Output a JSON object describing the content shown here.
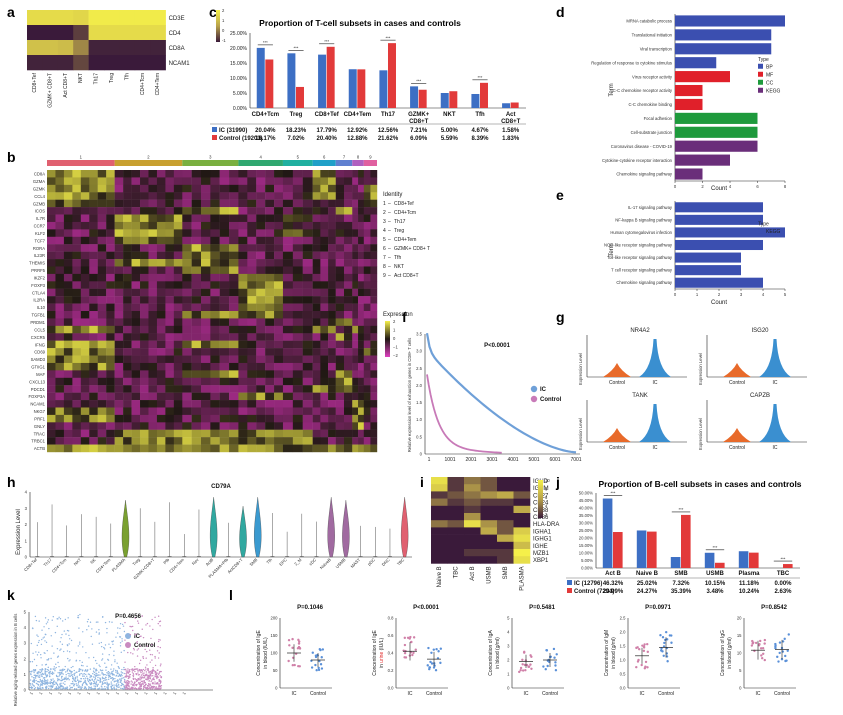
{
  "panels": {
    "a": "a",
    "b": "b",
    "c": "c",
    "d": "d",
    "e": "e",
    "f": "f",
    "g": "g",
    "h": "h",
    "i": "i",
    "j": "j",
    "k": "k",
    "l": "l"
  },
  "heatmap_a": {
    "rows": [
      "CD3E",
      "CD4",
      "CD8A",
      "NCAM1"
    ],
    "cols": [
      "CD8+Tef",
      "GZMK+ CD8+T",
      "Act CD8+T",
      "NKT",
      "Th17",
      "Treg",
      "Tfh",
      "CD4+Tcm",
      "CD4+Tem"
    ],
    "legend_ticks": [
      "2",
      "1",
      "0",
      "-1"
    ],
    "values": [
      [
        1.6,
        1.6,
        1.6,
        1.5,
        1.9,
        1.9,
        1.9,
        1.9,
        1.9
      ],
      [
        -1.0,
        -1.0,
        -1.0,
        -0.6,
        1.6,
        1.6,
        1.6,
        1.6,
        1.6
      ],
      [
        1.1,
        1.1,
        1.0,
        0.2,
        -0.9,
        -0.9,
        -0.9,
        -0.9,
        -0.9
      ],
      [
        -0.9,
        -0.9,
        -0.9,
        -0.5,
        -1.0,
        -1.0,
        -1.0,
        -1.0,
        -1.0
      ]
    ]
  },
  "chart_c": {
    "title": "Proportion of T-cell subsets in cases and controls",
    "categories": [
      "CD4+Tcm",
      "Treg",
      "CD8+Tef",
      "CD4+Tem",
      "Th17",
      "GZMK+ CD8+T",
      "NKT",
      "Tfh",
      "Act CD8+T"
    ],
    "cat_lines": [
      [
        "CD4+Tcm"
      ],
      [
        "Treg"
      ],
      [
        "CD8+Tef"
      ],
      [
        "CD4+Tem"
      ],
      [
        "Th17"
      ],
      [
        "GZMK+",
        "CD8+T"
      ],
      [
        "NKT"
      ],
      [
        "Tfh"
      ],
      [
        "Act",
        "CD8+T"
      ]
    ],
    "yticks": [
      "25.00%",
      "20.00%",
      "15.00%",
      "10.00%",
      "5.00%",
      "0.00%"
    ],
    "ymax": 25,
    "series": [
      {
        "name": "IC (31990)",
        "color": "#3d6fc4",
        "values": [
          20.04,
          18.23,
          17.79,
          12.92,
          12.56,
          7.21,
          5.0,
          4.67,
          1.58
        ],
        "labels": [
          "20.04%",
          "18.23%",
          "17.79%",
          "12.92%",
          "12.56%",
          "7.21%",
          "5.00%",
          "4.67%",
          "1.58%"
        ]
      },
      {
        "name": "Control (19203)",
        "color": "#e23a3a",
        "values": [
          16.17,
          7.02,
          20.4,
          12.88,
          21.62,
          6.09,
          5.59,
          8.39,
          1.83
        ],
        "labels": [
          "16.17%",
          "7.02%",
          "20.40%",
          "12.88%",
          "21.62%",
          "6.09%",
          "5.59%",
          "8.39%",
          "1.83%"
        ]
      }
    ],
    "sig": [
      0,
      1,
      2,
      4,
      5,
      7
    ],
    "sig_mark": "***"
  },
  "chart_d": {
    "ylabel": "Term",
    "xlabel": "Count",
    "xticks": [
      "0",
      "2",
      "4",
      "6",
      "8"
    ],
    "xmax": 8,
    "terms": [
      "MRNA catabolic process",
      "Translational initiation",
      "Viral transcription",
      "Regulation of response to cytokine stimulus",
      "Virus receptor activity",
      "C-C chemokine receptor activity",
      "C-C chemokine binding",
      "Focal adhesion",
      "Cell-substrate junction",
      "Coronavirus disease - COVID-19",
      "Cytokine-cytokine receptor interaction",
      "Chemokine signaling pathway"
    ],
    "values": [
      8,
      7,
      7,
      3,
      4,
      2,
      2,
      6,
      6,
      6,
      4,
      2
    ],
    "types": [
      "BP",
      "BP",
      "BP",
      "BP",
      "MF",
      "MF",
      "MF",
      "CC",
      "CC",
      "KEGG",
      "KEGG",
      "KEGG"
    ],
    "legend_title": "Type",
    "legend": [
      {
        "name": "BP",
        "color": "#3b4fb0"
      },
      {
        "name": "MF",
        "color": "#e0202a"
      },
      {
        "name": "CC",
        "color": "#1e9a3c"
      },
      {
        "name": "KEGG",
        "color": "#6a2e7a"
      }
    ]
  },
  "chart_e": {
    "ylabel": "Term",
    "xlabel": "Count",
    "xticks": [
      "0",
      "1",
      "2",
      "3",
      "4",
      "5"
    ],
    "xmax": 5,
    "terms": [
      "IL-17 signaling pathway",
      "NF-kappa B signaling pathway",
      "Human cytomegalovirus infection",
      "NOD-like receptor signaling pathway",
      "Toll-like receptor signaling pathway",
      "T cell receptor signaling pathway",
      "Chemokine signaling pathway"
    ],
    "values": [
      4,
      4,
      5,
      4,
      3,
      3,
      4
    ],
    "legend_title": "Type",
    "legend": [
      {
        "name": "KEGG",
        "color": "#3b4fb0"
      }
    ]
  },
  "heatmap_b": {
    "genes": [
      "CD8A",
      "GZMA",
      "GZMK",
      "CCL4",
      "GZMB",
      "ICOS",
      "IL7R",
      "CCR7",
      "KLF2",
      "TCF7",
      "RORA",
      "IL23R",
      "THEMIS",
      "PRRF5",
      "IKZF2",
      "FOXP3",
      "CTLA4",
      "IL2RA",
      "IL10",
      "TGFB1",
      "PRDM1",
      "CCL5",
      "CXCR5",
      "IFNG",
      "CD69",
      "SAMD3",
      "GTIIG1",
      "MAF",
      "CXCL13",
      "PDCD1",
      "FOXP3A",
      "NCAM1",
      "NKG7",
      "PRF1",
      "GNLY",
      "TRAC",
      "TRBC1",
      "ACTB"
    ],
    "cluster_nums": [
      "1",
      "2",
      "3",
      "4",
      "5",
      "6",
      "7",
      "8",
      "9"
    ],
    "cluster_colors": [
      "#e06070",
      "#c8a030",
      "#7ab040",
      "#30a870",
      "#20b0a0",
      "#20a0c8",
      "#6080d0",
      "#b060c0",
      "#e060a0"
    ],
    "cluster_widths": [
      0.205,
      0.205,
      0.17,
      0.135,
      0.09,
      0.07,
      0.05,
      0.035,
      0.04
    ],
    "identity_title": "Identity",
    "identity": [
      {
        "num": "1",
        "name": "CD8+Tef"
      },
      {
        "num": "2",
        "name": "CD4+Tcm"
      },
      {
        "num": "3",
        "name": "Th17"
      },
      {
        "num": "4",
        "name": "Treg"
      },
      {
        "num": "5",
        "name": "CD4+Tem"
      },
      {
        "num": "6",
        "name": "GZMK+ CD8+ T"
      },
      {
        "num": "7",
        "name": "Tfh"
      },
      {
        "num": "8",
        "name": "NKT"
      },
      {
        "num": "9",
        "name": "Act CD8+T"
      }
    ],
    "expr_title": "Expression",
    "expr_ticks": [
      "2",
      "1",
      "0",
      "−1",
      "−2"
    ]
  },
  "chart_f": {
    "ylabel": "Relative expression level of exhaustion genes in CD8+ T cells",
    "pvalue": "P<0.0001",
    "xticks": [
      "1",
      "1001",
      "2001",
      "3001",
      "4001",
      "5001",
      "6001",
      "7001"
    ],
    "yticks": [
      "3.5",
      "3.0",
      "2.5",
      "2.0",
      "1.5",
      "1.0",
      "0.5",
      "0"
    ],
    "series": [
      {
        "name": "IC",
        "color": "#6fa0d8"
      },
      {
        "name": "Control",
        "color": "#c87ab8"
      }
    ]
  },
  "panel_g": {
    "ylabel": "Expression Level",
    "genes": [
      "NR4A2",
      "ISG20",
      "TANK",
      "CAPZB"
    ],
    "groups": [
      "Control",
      "IC"
    ],
    "control_color": "#e86a2a",
    "ic_color": "#3a8fd0"
  },
  "panel_h": {
    "title": "CD79A",
    "ylabel": "Expression Level",
    "yticks": [
      "4",
      "3",
      "2",
      "1",
      "0"
    ],
    "cells": [
      "CD8+Tef",
      "Th17",
      "CD4+Tcm",
      "NKT",
      "NK",
      "CD4+Tem",
      "PLASMA",
      "Treg",
      "GZMK+CD8+T",
      "Pfb",
      "CD4+Tem",
      "Nev",
      "ActB",
      "PLASMA+Pfb",
      "ActCD8+T",
      "SMB",
      "Tfh",
      "EPC",
      "2_M",
      "cDC",
      "NaiveB",
      "USMB",
      "MAST",
      "pDC",
      "DNC",
      "TBC"
    ]
  },
  "heatmap_i": {
    "rows": [
      "IGHD",
      "IGHM",
      "CD27",
      "CD24",
      "CD38",
      "CD86",
      "HLA-DRA",
      "IGHA1",
      "IGHG1",
      "IGHE",
      "MZB1",
      "XBP1"
    ],
    "cols": [
      "Naive B",
      "TBC",
      "Act B",
      "USMB",
      "SMB",
      "PLASMA"
    ],
    "legend_ticks": [
      "10",
      "8",
      "6",
      "4",
      "2"
    ],
    "values": [
      [
        9,
        2,
        4,
        3,
        1,
        1
      ],
      [
        8,
        2,
        5,
        3,
        1,
        1
      ],
      [
        2,
        3,
        4,
        5,
        6,
        3
      ],
      [
        4,
        2,
        3,
        2,
        2,
        1
      ],
      [
        1,
        1,
        2,
        1,
        1,
        6
      ],
      [
        1,
        1,
        5,
        1,
        1,
        1
      ],
      [
        4,
        3,
        9,
        5,
        3,
        1
      ],
      [
        1,
        1,
        1,
        6,
        3,
        8
      ],
      [
        1,
        1,
        1,
        1,
        6,
        9
      ],
      [
        1,
        1,
        1,
        1,
        1,
        7
      ],
      [
        1,
        1,
        2,
        2,
        2,
        10
      ],
      [
        1,
        1,
        1,
        1,
        2,
        9
      ]
    ]
  },
  "chart_j": {
    "title": "Proportion of B-cell subsets in cases and controls",
    "categories": [
      "Act B",
      "Naive B",
      "SMB",
      "USMB",
      "Plasma",
      "TBC"
    ],
    "yticks": [
      "50.00%",
      "45.00%",
      "40.00%",
      "35.00%",
      "30.00%",
      "25.00%",
      "20.00%",
      "15.00%",
      "10.00%",
      "5.00%",
      "0.00%"
    ],
    "ymax": 50,
    "series": [
      {
        "name": "IC (12796)",
        "color": "#3d6fc4",
        "values": [
          46.32,
          25.02,
          7.32,
          10.15,
          11.18,
          0.0
        ],
        "labels": [
          "46.32%",
          "25.02%",
          "7.32%",
          "10.15%",
          "11.18%",
          "0.00%"
        ]
      },
      {
        "name": "Control (7294)",
        "color": "#e23a3a",
        "values": [
          23.99,
          24.27,
          35.39,
          3.48,
          10.24,
          2.63
        ],
        "labels": [
          "23.99%",
          "24.27%",
          "35.39%",
          "3.48%",
          "10.24%",
          "2.63%"
        ]
      }
    ],
    "sig": [
      0,
      2,
      3,
      5
    ],
    "sig_mark": "***"
  },
  "panel_k": {
    "ylabel": "Relative aging-related genes expression in B cells",
    "pvalue": "P=0.4656",
    "yticks": [
      "5",
      "4",
      "3",
      "2",
      "1",
      "0"
    ],
    "series": [
      {
        "name": "IC",
        "color": "#8fb5e0"
      },
      {
        "name": "Control",
        "color": "#c98ac0"
      }
    ],
    "xticks": [
      "1",
      "1",
      "1",
      "1",
      "1",
      "1",
      "1",
      "1",
      "1",
      "1",
      "1",
      "1",
      "1",
      "1",
      "1",
      "1",
      "1"
    ]
  },
  "panel_l": {
    "groups": [
      "IC",
      "Control"
    ],
    "plots": [
      {
        "pvalue": "P=0.1046",
        "yl1": "Concentration of IgE",
        "yl2": "in blood (IU/L)",
        "red": "",
        "yticks": [
          "200",
          "150",
          "100",
          "50",
          "0"
        ],
        "ymax": 200,
        "ic_mean": 100,
        "ct_mean": 80
      },
      {
        "pvalue": "P<0.0001",
        "yl1": "Concentration of IgE",
        "yl2": "in urine (IU/L)",
        "red": "urine",
        "yticks": [
          "0.8",
          "0.6",
          "0.4",
          "0.2",
          "0.0"
        ],
        "ymax": 0.8,
        "ic_mean": 0.42,
        "ct_mean": 0.33
      },
      {
        "pvalue": "P=0.5481",
        "yl1": "Concentration of IgA",
        "yl2": "in blood (g/ml)",
        "red": "",
        "yticks": [
          "5",
          "4",
          "3",
          "2",
          "1",
          "0"
        ],
        "ymax": 5,
        "ic_mean": 1.9,
        "ct_mean": 2.0
      },
      {
        "pvalue": "P=0.0971",
        "yl1": "Concentration of IgM",
        "yl2": "in blood (g/ml)",
        "red": "",
        "yticks": [
          "2.5",
          "2.0",
          "1.5",
          "1.0",
          "0.5",
          "0.0"
        ],
        "ymax": 2.5,
        "ic_mean": 1.15,
        "ct_mean": 1.45
      },
      {
        "pvalue": "P=0.8542",
        "yl1": "Concentration of IgG",
        "yl2": "in blood (g/ml)",
        "red": "",
        "yticks": [
          "20",
          "15",
          "10",
          "5",
          "0"
        ],
        "ymax": 20,
        "ic_mean": 10.8,
        "ct_mean": 11.0
      }
    ]
  }
}
